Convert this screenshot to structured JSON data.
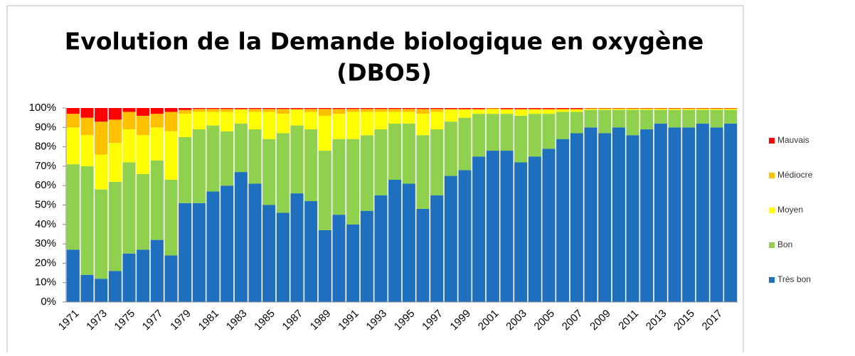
{
  "chart_data": {
    "type": "stacked_bar",
    "title": [
      "Evolution de la Demande biologique en oxygène",
      "(DBO5)"
    ],
    "categories": [
      "1971",
      null,
      "1973",
      null,
      "1975",
      null,
      "1977",
      null,
      "1979",
      null,
      "1981",
      null,
      "1983",
      null,
      "1985",
      null,
      "1987",
      null,
      "1989",
      null,
      "1991",
      null,
      "1993",
      null,
      "1995",
      null,
      "1997",
      null,
      "1999",
      null,
      "2001",
      null,
      "2003",
      null,
      "2005",
      null,
      "2007",
      null,
      "2009",
      null,
      "2011",
      null,
      "2013",
      null,
      "2015",
      null,
      "2017",
      null
    ],
    "series": [
      {
        "name": "Très bon",
        "color": "#1f6fbf",
        "values": [
          27,
          14,
          12,
          16,
          25,
          27,
          32,
          24,
          51,
          51,
          57,
          60,
          67,
          61,
          50,
          46,
          56,
          52,
          37,
          45,
          40,
          47,
          55,
          63,
          61,
          48,
          55,
          65,
          68,
          75,
          78,
          78,
          72,
          75,
          79,
          84,
          87,
          90,
          87,
          90,
          86,
          89,
          92,
          90,
          90,
          92,
          90,
          92
        ]
      },
      {
        "name": "Bon",
        "color": "#8fd14f",
        "values": [
          44,
          56,
          46,
          46,
          47,
          39,
          41,
          39,
          34,
          38,
          34,
          28,
          25,
          28,
          34,
          41,
          35,
          37,
          41,
          39,
          44,
          39,
          34,
          29,
          31,
          38,
          34,
          28,
          27,
          22,
          19,
          19,
          24,
          22,
          18,
          14,
          11,
          9,
          12,
          9,
          13,
          10,
          7,
          9,
          9,
          7,
          9,
          7
        ]
      },
      {
        "name": "Moyen",
        "color": "#ffff00",
        "values": [
          19,
          16,
          18,
          20,
          17,
          20,
          17,
          25,
          12,
          9,
          7,
          10,
          7,
          9,
          14,
          10,
          8,
          9,
          18,
          13,
          14,
          12,
          9,
          6,
          6,
          11,
          9,
          6,
          4,
          2,
          2.5,
          2,
          3,
          2,
          2,
          1,
          1,
          0.5,
          0.5,
          0.5,
          0.5,
          0.5,
          0.5,
          0.5,
          0.5,
          0.5,
          0.5,
          0.5
        ]
      },
      {
        "name": "Médiocre",
        "color": "#ffc000",
        "values": [
          7,
          9,
          17,
          12,
          9,
          10,
          7,
          10,
          2,
          1.5,
          1.5,
          1.5,
          0.5,
          1.5,
          1.5,
          2.5,
          0.5,
          1.5,
          3.5,
          2.5,
          1.5,
          1.5,
          1.5,
          1.5,
          1.5,
          2.5,
          1.5,
          0.5,
          0.5,
          0.5,
          0.3,
          0.5,
          0.5,
          0.5,
          0.5,
          0.5,
          0.5,
          0.3,
          0.3,
          0.3,
          0.3,
          0.3,
          0.3,
          0.3,
          0.3,
          0.3,
          0.3,
          0.3
        ]
      },
      {
        "name": "Mauvais",
        "color": "#ff0000",
        "values": [
          3,
          5,
          7,
          6,
          2,
          4,
          3,
          2,
          1,
          0.5,
          0.5,
          0.5,
          0.5,
          0.5,
          0.5,
          0.5,
          0.5,
          0.5,
          0.5,
          0.5,
          0.5,
          0.5,
          0.5,
          0.5,
          0.5,
          0.5,
          0.5,
          0.5,
          0.5,
          0.5,
          0.2,
          0.5,
          0.5,
          0.5,
          0.5,
          0.5,
          0.5,
          0.2,
          0.2,
          0.2,
          0.2,
          0.2,
          0.2,
          0.2,
          0.2,
          0.2,
          0.2,
          0.2
        ]
      }
    ],
    "ylim": [
      0,
      100
    ],
    "yticks": [
      {
        "value": 0,
        "label": "0%"
      },
      {
        "value": 10,
        "label": "10%"
      },
      {
        "value": 20,
        "label": "20%"
      },
      {
        "value": 30,
        "label": "30%"
      },
      {
        "value": 40,
        "label": "40%"
      },
      {
        "value": 50,
        "label": "50%"
      },
      {
        "value": 60,
        "label": "60%"
      },
      {
        "value": 70,
        "label": "70%"
      },
      {
        "value": 80,
        "label": "80%"
      },
      {
        "value": 90,
        "label": "90%"
      },
      {
        "value": 100,
        "label": "100%"
      }
    ],
    "legend": "right"
  }
}
